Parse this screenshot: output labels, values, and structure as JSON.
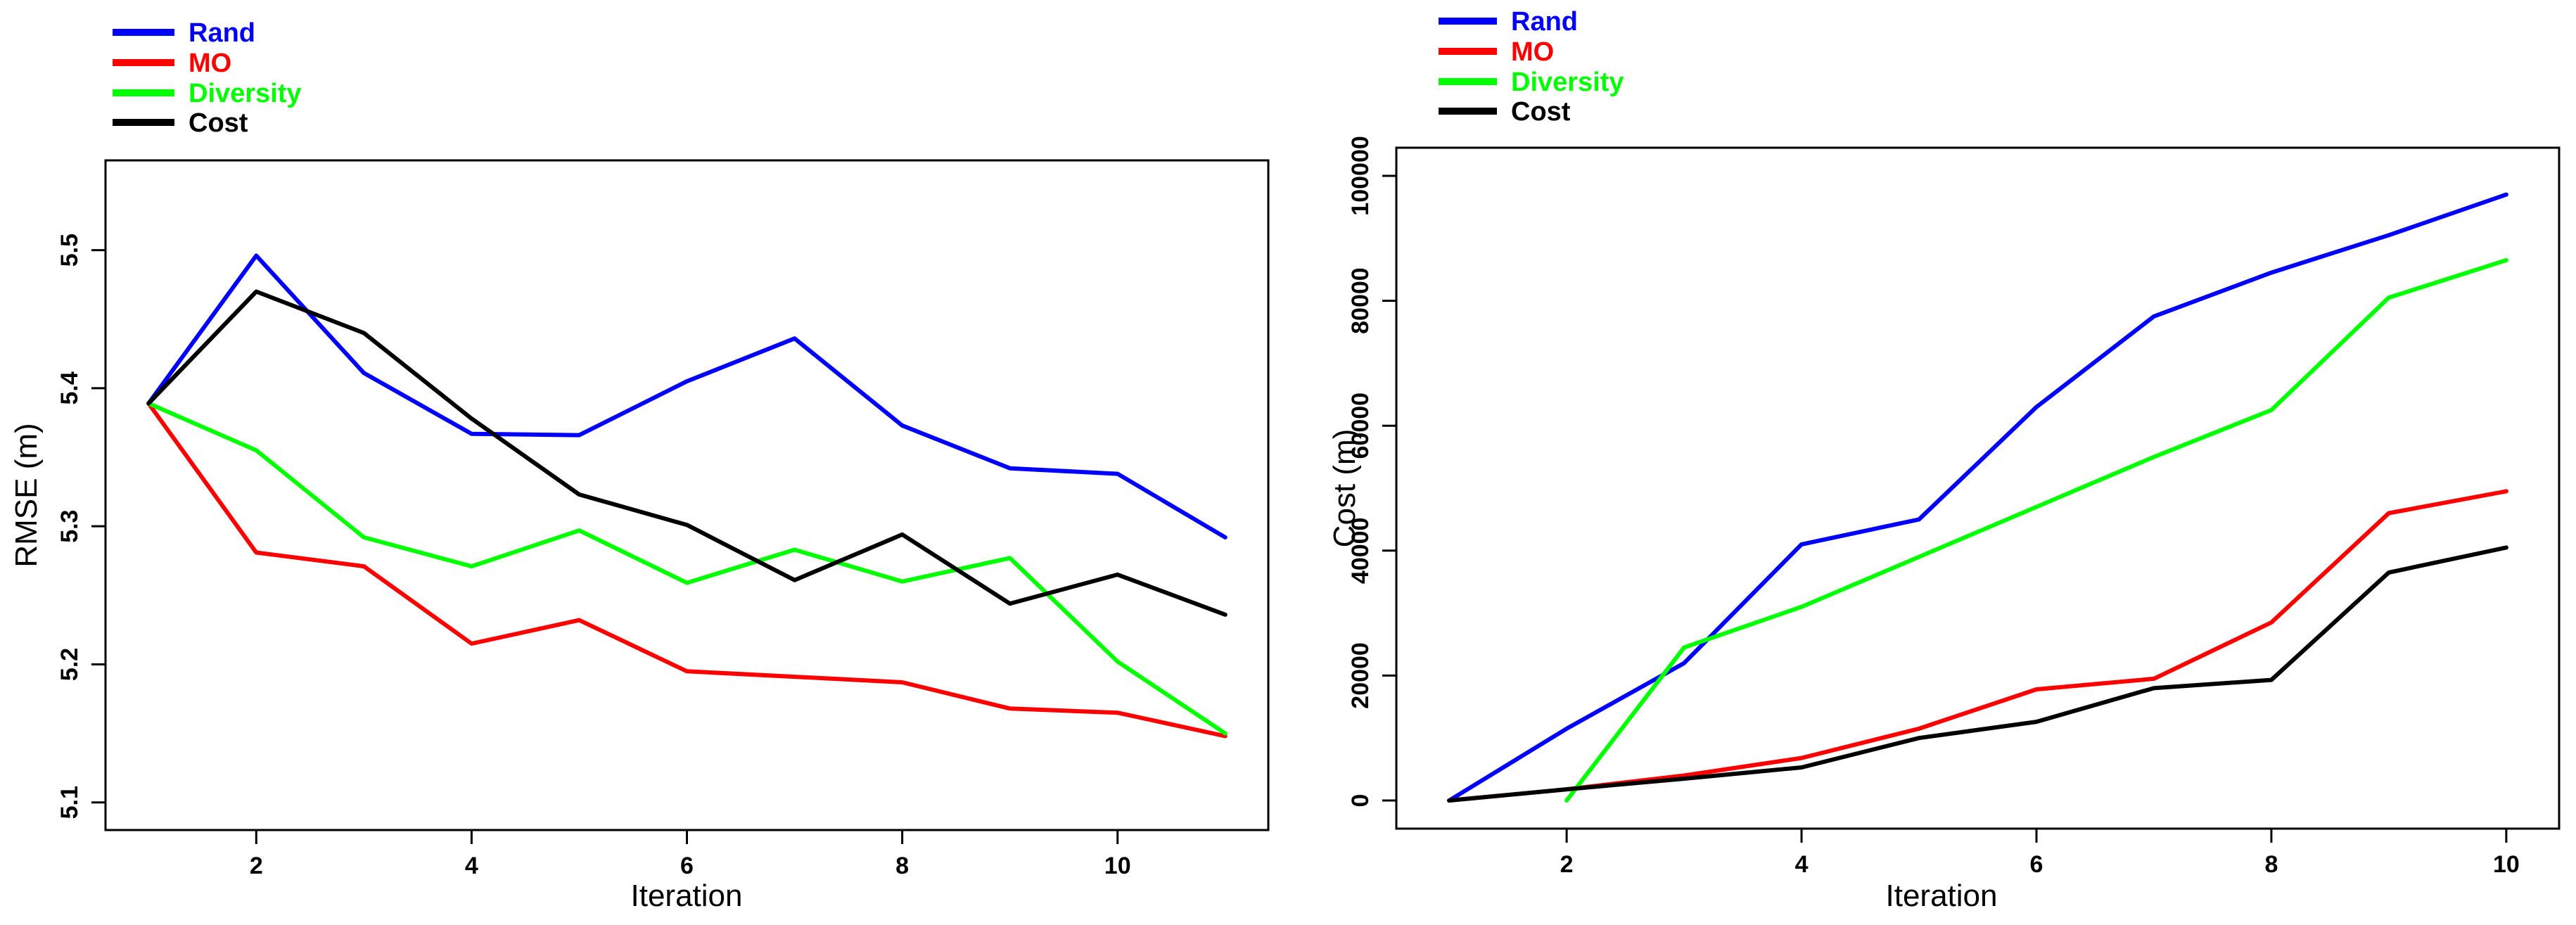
{
  "colors": {
    "Rand": "#0000ff",
    "MO": "#ff0000",
    "Diversity": "#00ff00",
    "Cost": "#000000"
  },
  "chart_data": [
    {
      "type": "line",
      "xlabel": "Iteration",
      "ylabel": "RMSE (m)",
      "xlim": [
        0.6,
        11.4
      ],
      "ylim": [
        5.08,
        5.565
      ],
      "xticks": [
        2,
        4,
        6,
        8,
        10
      ],
      "xtick_labels": [
        "2",
        "4",
        "6",
        "8",
        "10"
      ],
      "yticks": [
        5.1,
        5.2,
        5.3,
        5.4,
        5.5
      ],
      "ytick_labels": [
        "5.1",
        "5.2",
        "5.3",
        "5.4",
        "5.5"
      ],
      "legend": [
        "Rand",
        "MO",
        "Diversity",
        "Cost"
      ],
      "legend_position": "top-left, outside",
      "x": [
        1,
        2,
        3,
        4,
        5,
        6,
        7,
        8,
        9,
        10,
        11
      ],
      "series": [
        {
          "name": "Rand",
          "values": [
            5.389,
            5.496,
            5.411,
            5.367,
            5.366,
            5.405,
            5.436,
            5.373,
            5.342,
            5.338,
            5.292
          ]
        },
        {
          "name": "MO",
          "values": [
            5.389,
            5.281,
            5.271,
            5.215,
            5.232,
            5.195,
            5.191,
            5.187,
            5.168,
            5.165,
            5.148
          ]
        },
        {
          "name": "Diversity",
          "values": [
            5.389,
            5.355,
            5.292,
            5.271,
            5.297,
            5.259,
            5.283,
            5.26,
            5.277,
            5.202,
            5.15
          ]
        },
        {
          "name": "Cost",
          "values": [
            5.389,
            5.47,
            5.44,
            5.378,
            5.323,
            5.301,
            5.261,
            5.294,
            5.244,
            5.265,
            5.236
          ]
        }
      ]
    },
    {
      "type": "line",
      "xlabel": "Iteration",
      "ylabel": "Cost (m)",
      "xlim": [
        0.55,
        10.45
      ],
      "ylim": [
        -4500,
        104500
      ],
      "xticks": [
        2,
        4,
        6,
        8,
        10
      ],
      "xtick_labels": [
        "2",
        "4",
        "6",
        "8",
        "10"
      ],
      "yticks": [
        0,
        20000,
        40000,
        60000,
        80000,
        100000
      ],
      "ytick_labels": [
        "0",
        "20000",
        "40000",
        "60000",
        "80000",
        "100000"
      ],
      "legend": [
        "Rand",
        "MO",
        "Diversity",
        "Cost"
      ],
      "legend_position": "top-left, outside",
      "x": [
        1,
        2,
        3,
        4,
        5,
        6,
        7,
        8,
        9,
        10
      ],
      "series": [
        {
          "name": "Rand",
          "values": [
            0,
            11500,
            22000,
            41000,
            45000,
            63000,
            77500,
            84500,
            90500,
            97000
          ]
        },
        {
          "name": "MO",
          "values": [
            0,
            1800,
            4000,
            6800,
            11500,
            17800,
            19500,
            28500,
            46000,
            49500
          ]
        },
        {
          "name": "Diversity",
          "x": [
            2,
            3,
            4,
            5,
            6,
            7,
            8,
            9,
            10
          ],
          "values": [
            0,
            24500,
            31000,
            39000,
            47000,
            55000,
            62500,
            80500,
            86500
          ]
        },
        {
          "name": "Cost",
          "values": [
            0,
            1800,
            3500,
            5300,
            10000,
            12600,
            18000,
            19300,
            36500,
            40500
          ]
        }
      ]
    }
  ]
}
